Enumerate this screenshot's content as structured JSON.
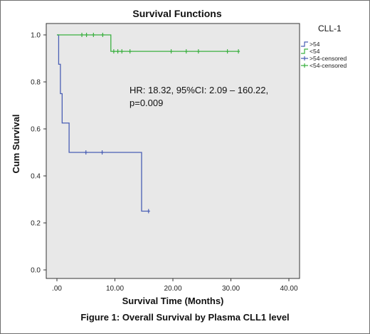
{
  "chart_data": {
    "type": "line",
    "title": "Survival Functions",
    "xlabel": "Survival Time (Months)",
    "ylabel": "Cum Survival",
    "xlim": [
      0,
      40
    ],
    "ylim": [
      0,
      1
    ],
    "x_ticks": [
      ".00",
      "10.00",
      "20.00",
      "30.00",
      "40.00"
    ],
    "y_ticks": [
      "0.0",
      "0.2",
      "0.4",
      "0.6",
      "0.8",
      "1.0"
    ],
    "x_tick_values": [
      0,
      10,
      20,
      30,
      40
    ],
    "y_tick_values": [
      0,
      0.2,
      0.4,
      0.6,
      0.8,
      1.0
    ],
    "grid": false,
    "legend_position": "right",
    "legend_title": "CLL-1",
    "legend": [
      {
        "label": ">54",
        "kind": "line",
        "color": "#4a5fb5"
      },
      {
        "label": "<54",
        "kind": "line",
        "color": "#3bb040"
      },
      {
        "label": ">54-censored",
        "kind": "censor",
        "color": "#4a5fb5"
      },
      {
        "label": "<54-censored",
        "kind": "censor",
        "color": "#3bb040"
      }
    ],
    "series": [
      {
        "name": ">54",
        "color": "#4a5fb5",
        "steps": [
          [
            0,
            1.0
          ],
          [
            0.3,
            0.875
          ],
          [
            0.6,
            0.75
          ],
          [
            0.9,
            0.625
          ],
          [
            2.1,
            0.5
          ],
          [
            14.6,
            0.25
          ],
          [
            15.8,
            0.25
          ]
        ],
        "censored": [
          [
            5,
            0.5
          ],
          [
            7.8,
            0.5
          ],
          [
            15.8,
            0.25
          ]
        ]
      },
      {
        "name": "<54",
        "color": "#3bb040",
        "steps": [
          [
            0,
            1.0
          ],
          [
            9.3,
            0.93
          ],
          [
            31.3,
            0.93
          ]
        ],
        "censored": [
          [
            4.3,
            1.0
          ],
          [
            5.1,
            1.0
          ],
          [
            6.3,
            1.0
          ],
          [
            7.9,
            1.0
          ],
          [
            9.8,
            0.93
          ],
          [
            10.5,
            0.93
          ],
          [
            11.2,
            0.93
          ],
          [
            12.6,
            0.93
          ],
          [
            19.7,
            0.93
          ],
          [
            22.3,
            0.93
          ],
          [
            24.4,
            0.93
          ],
          [
            29.4,
            0.93
          ],
          [
            31.3,
            0.93
          ]
        ]
      }
    ],
    "annotation": "HR: 18.32, 95%CI: 2.09 – 160.22,\np=0.009",
    "annotation_lines": [
      "HR: 18.32, 95%CI: 2.09 – 160.22,",
      "p=0.009"
    ],
    "caption": "Figure 1: Overall Survival by Plasma CLL1 level",
    "colors": {
      "plot_background": "#e8e8e8",
      "axis": "#333333"
    }
  }
}
